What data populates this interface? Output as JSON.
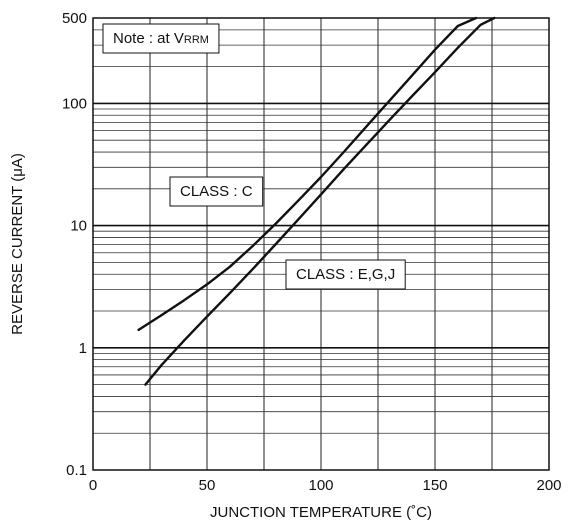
{
  "chart_data": {
    "type": "line",
    "title": "",
    "xlabel": "JUNCTION TEMPERATURE (˚C)",
    "ylabel": "REVERSE CURRENT (μA)",
    "xlim": [
      0,
      200
    ],
    "ylim": [
      0.1,
      500
    ],
    "yscale": "log",
    "grid": true,
    "x_ticks": [
      0,
      50,
      100,
      150,
      200
    ],
    "x_tick_labels": [
      "0",
      "50",
      "100",
      "150",
      "200"
    ],
    "y_ticks": [
      0.1,
      1,
      10,
      100,
      500
    ],
    "y_tick_labels": [
      "0.1",
      "1",
      "10",
      "100",
      "500"
    ],
    "note": {
      "prefix": "Note : at V",
      "subscript": "RRM"
    },
    "series": [
      {
        "label": "CLASS : C",
        "points": [
          [
            20,
            1.4
          ],
          [
            30,
            1.85
          ],
          [
            40,
            2.45
          ],
          [
            50,
            3.3
          ],
          [
            60,
            4.6
          ],
          [
            70,
            6.8
          ],
          [
            80,
            10.3
          ],
          [
            90,
            16
          ],
          [
            100,
            25
          ],
          [
            110,
            40
          ],
          [
            120,
            65
          ],
          [
            130,
            105
          ],
          [
            140,
            170
          ],
          [
            150,
            275
          ],
          [
            160,
            430
          ],
          [
            168,
            500
          ]
        ]
      },
      {
        "label": "CLASS : E,G,J",
        "points": [
          [
            23,
            0.5
          ],
          [
            30,
            0.72
          ],
          [
            40,
            1.15
          ],
          [
            50,
            1.8
          ],
          [
            60,
            2.8
          ],
          [
            70,
            4.4
          ],
          [
            80,
            7
          ],
          [
            90,
            11.2
          ],
          [
            100,
            18
          ],
          [
            110,
            29
          ],
          [
            120,
            46
          ],
          [
            130,
            73
          ],
          [
            140,
            115
          ],
          [
            150,
            180
          ],
          [
            160,
            285
          ],
          [
            170,
            440
          ],
          [
            176,
            500
          ]
        ]
      }
    ]
  }
}
